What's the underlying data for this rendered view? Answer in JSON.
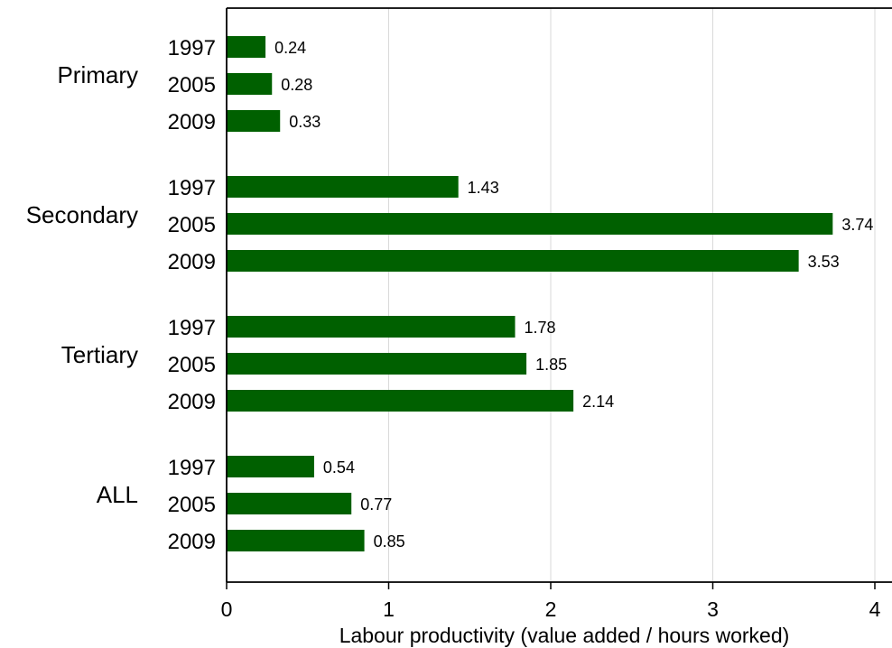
{
  "chart_data": {
    "type": "bar",
    "orientation": "horizontal",
    "xlabel": "Labour productivity (value added / hours worked)",
    "xlim": [
      0,
      4
    ],
    "xticks": [
      0,
      1,
      2,
      3,
      4
    ],
    "xtick_labels": [
      "0",
      "1",
      "2",
      "3",
      "4"
    ],
    "grid": true,
    "bar_color": "#006000",
    "groups": [
      {
        "name": "Primary",
        "bars": [
          {
            "year": "1997",
            "value": 0.24,
            "label": "0.24"
          },
          {
            "year": "2005",
            "value": 0.28,
            "label": "0.28"
          },
          {
            "year": "2009",
            "value": 0.33,
            "label": "0.33"
          }
        ]
      },
      {
        "name": "Secondary",
        "bars": [
          {
            "year": "1997",
            "value": 1.43,
            "label": "1.43"
          },
          {
            "year": "2005",
            "value": 3.74,
            "label": "3.74"
          },
          {
            "year": "2009",
            "value": 3.53,
            "label": "3.53"
          }
        ]
      },
      {
        "name": "Tertiary",
        "bars": [
          {
            "year": "1997",
            "value": 1.78,
            "label": "1.78"
          },
          {
            "year": "2005",
            "value": 1.85,
            "label": "1.85"
          },
          {
            "year": "2009",
            "value": 2.14,
            "label": "2.14"
          }
        ]
      },
      {
        "name": "ALL",
        "bars": [
          {
            "year": "1997",
            "value": 0.54,
            "label": "0.54"
          },
          {
            "year": "2005",
            "value": 0.77,
            "label": "0.77"
          },
          {
            "year": "2009",
            "value": 0.85,
            "label": "0.85"
          }
        ]
      }
    ]
  }
}
